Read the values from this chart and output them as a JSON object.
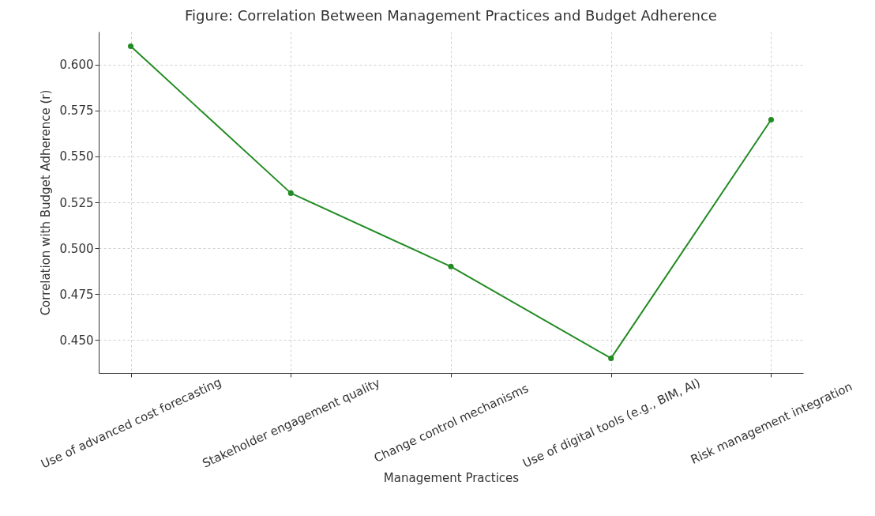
{
  "chart_data": {
    "type": "line",
    "title": "Figure: Correlation Between Management Practices and Budget Adherence",
    "xlabel": "Management Practices",
    "ylabel": "Correlation with Budget Adherence (r)",
    "categories": [
      "Use of advanced cost forecasting",
      "Stakeholder engagement quality",
      "Change control mechanisms",
      "Use of digital tools (e.g., BIM, AI)",
      "Risk management integration"
    ],
    "series": [
      {
        "color": "#228b22",
        "values": [
          0.61,
          0.53,
          0.49,
          0.44,
          0.57
        ]
      }
    ],
    "ylim": [
      0.432,
      0.618
    ],
    "yticks": [
      {
        "value": 0.45,
        "label": "0.450"
      },
      {
        "value": 0.475,
        "label": "0.475"
      },
      {
        "value": 0.5,
        "label": "0.500"
      },
      {
        "value": 0.525,
        "label": "0.525"
      },
      {
        "value": 0.55,
        "label": "0.550"
      },
      {
        "value": 0.575,
        "label": "0.575"
      },
      {
        "value": 0.6,
        "label": "0.600"
      }
    ],
    "grid": true,
    "marker": "circle",
    "line_style": "solid"
  }
}
